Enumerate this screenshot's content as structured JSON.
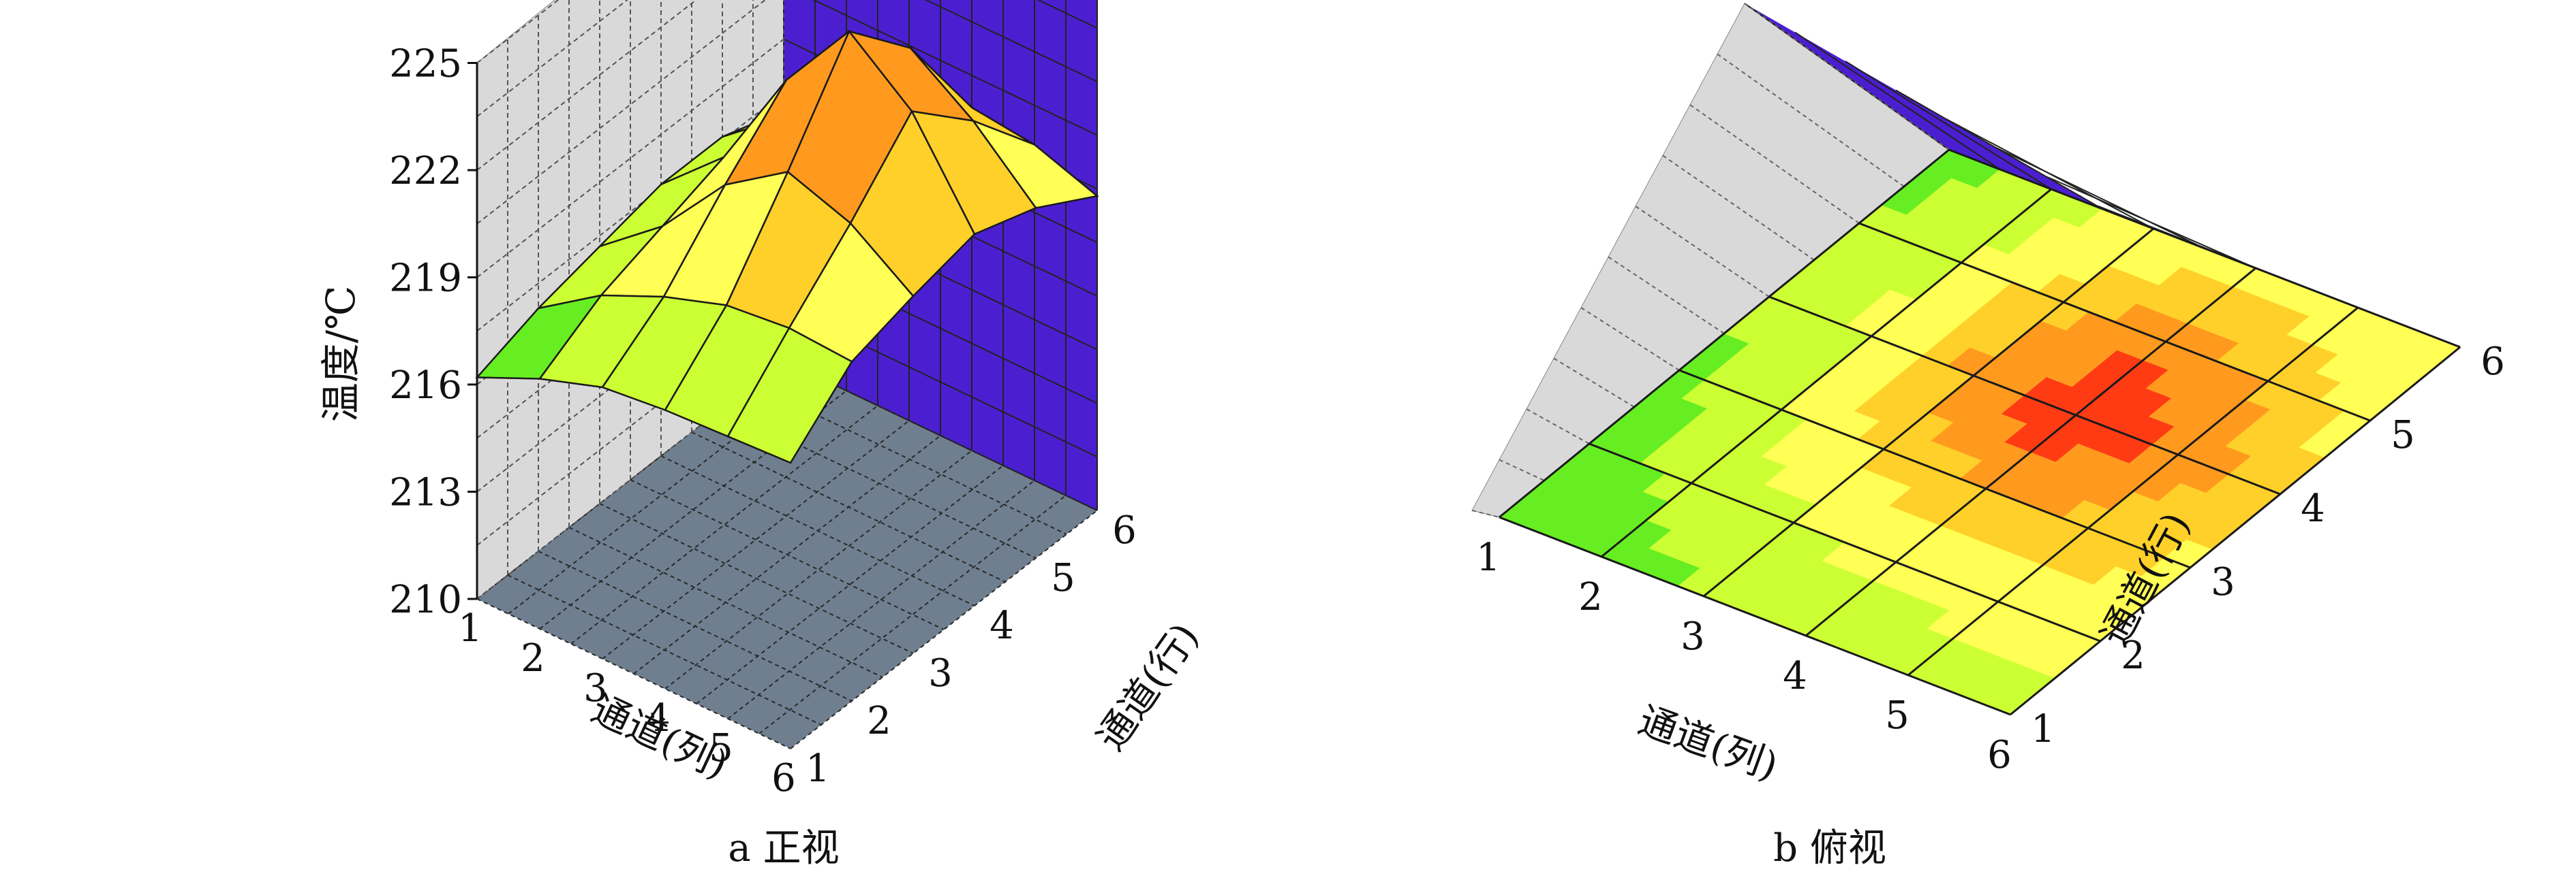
{
  "colors": {
    "left_wall": "#d9d9d9",
    "back_wall": "#4b1fd0",
    "floor": "#6f7f8f",
    "grid_line": "#2a2a2a",
    "surface_edge": "#1a1a1a",
    "palette": [
      "#66ee22",
      "#ccff33",
      "#ffff55",
      "#ffd02a",
      "#ff9a1e",
      "#ff3b14"
    ]
  },
  "chart_data": [
    {
      "type": "surface",
      "caption": "a 正视",
      "zlabel": "温度/℃",
      "xlabel": "通道(列)",
      "ylabel": "通道(行)",
      "zlim": [
        210,
        225
      ],
      "z_ticks": [
        "210",
        "213",
        "216",
        "219",
        "222",
        "225"
      ],
      "x_ticks": [
        "1",
        "2",
        "3",
        "4",
        "5",
        "6"
      ],
      "y_ticks": [
        "1",
        "2",
        "3",
        "4",
        "5",
        "6"
      ],
      "grid": true
    },
    {
      "type": "surface",
      "caption": "b 俯视",
      "xlabel": "通道(列)",
      "ylabel": "通道(行)",
      "x_ticks": [
        "1",
        "2",
        "3",
        "4",
        "5",
        "6"
      ],
      "y_ticks": [
        "1",
        "2",
        "3",
        "4",
        "5",
        "6"
      ]
    }
  ],
  "surface_values": [
    [
      216.2,
      217.0,
      217.6,
      217.8,
      217.9,
      218.0
    ],
    [
      216.8,
      218.0,
      218.8,
      219.4,
      219.6,
      219.5
    ],
    [
      217.2,
      218.6,
      220.6,
      221.8,
      221.2,
      220.0
    ],
    [
      217.6,
      219.2,
      222.2,
      224.4,
      223.0,
      220.4
    ],
    [
      217.6,
      219.0,
      221.2,
      222.6,
      221.4,
      219.8
    ],
    [
      217.0,
      218.2,
      219.2,
      219.6,
      219.4,
      218.8
    ]
  ]
}
